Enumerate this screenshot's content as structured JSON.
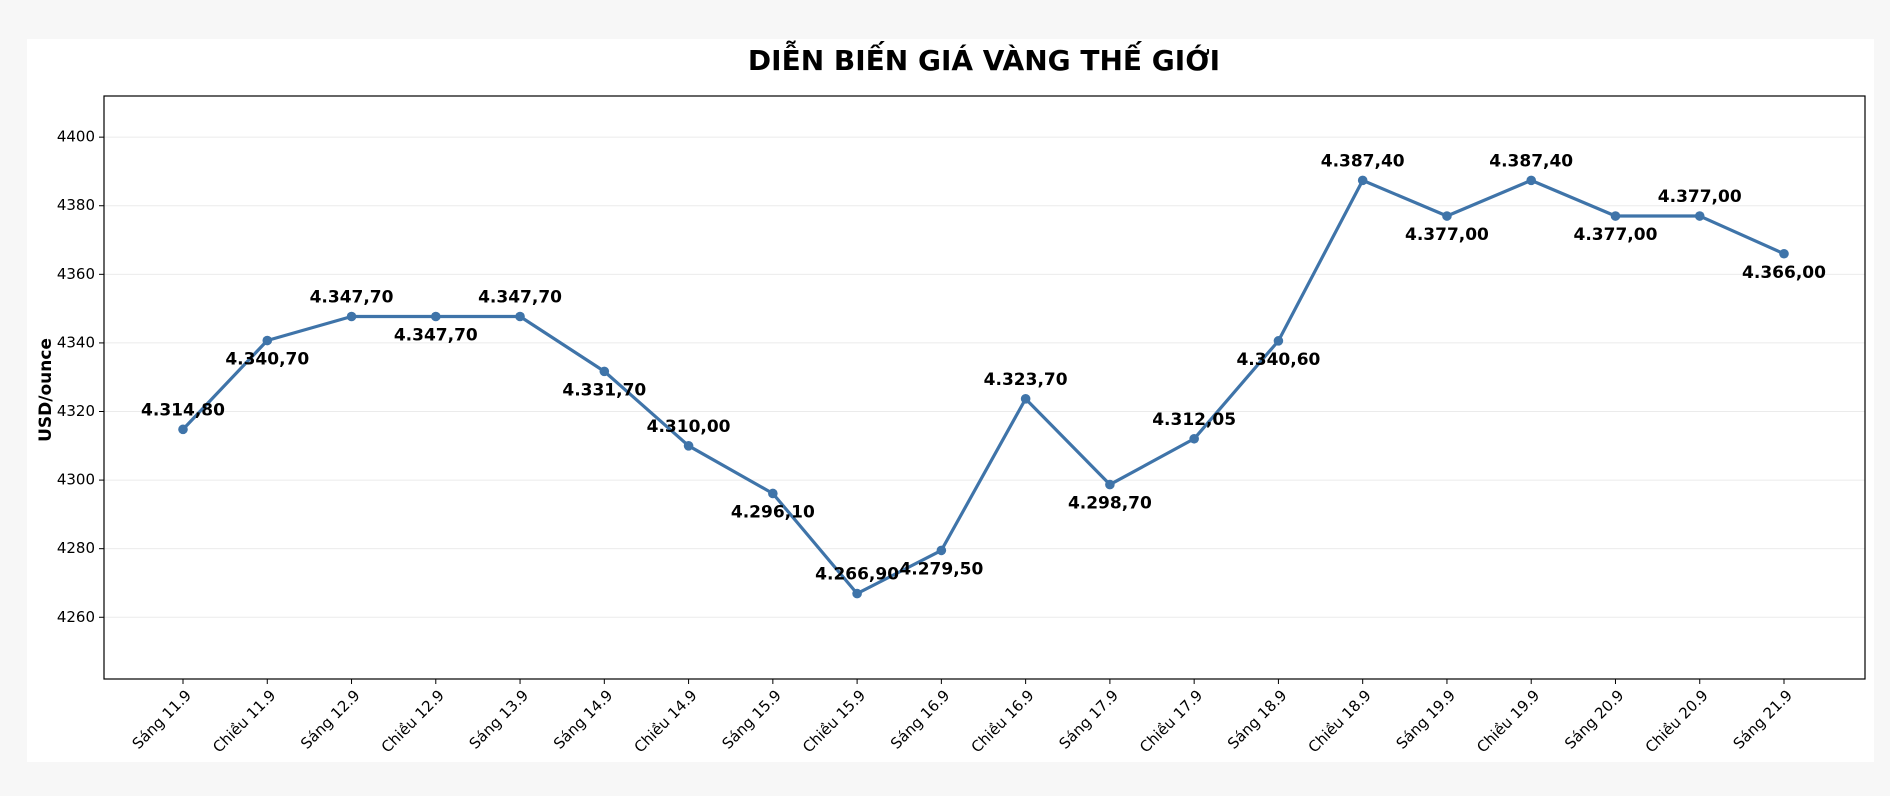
{
  "chart_data": {
    "type": "line",
    "title": "DIỄN BIẾN GIÁ VÀNG THẾ GIỚI",
    "y_label": "USD/ounce",
    "categories": [
      "Sáng 11.9",
      "Chiều 11.9",
      "Sáng 12.9",
      "Chiều 12.9",
      "Sáng 13.9",
      "Sáng 14.9",
      "Chiều 14.9",
      "Sáng 15.9",
      "Chiều 15.9",
      "Sáng 16.9",
      "Chiều 16.9",
      "Sáng 17.9",
      "Chiều 17.9",
      "Sáng 18.9",
      "Chiều 18.9",
      "Sáng 19.9",
      "Chiều 19.9",
      "Sáng 20.9",
      "Chiều 20.9",
      "Sáng 21.9"
    ],
    "values": [
      4314.8,
      4340.7,
      4347.7,
      4347.7,
      4347.7,
      4331.7,
      4310,
      4296.1,
      4266.9,
      4279.5,
      4323.7,
      4298.7,
      4312.05,
      4340.6,
      4387.4,
      4377,
      4387.4,
      4377,
      4377,
      4366
    ],
    "value_labels": [
      "4.314,80",
      "4.340,70",
      "4.347,70",
      "4.347,70",
      "4.347,70",
      "4.331,70",
      "4.310,00",
      "4.296,10",
      "4.266,90",
      "4.279,50",
      "4.323,70",
      "4.298,70",
      "4.312,05",
      "4.340,60",
      "4.387,40",
      "4.377,00",
      "4.387,40",
      "4.377,00",
      "4.377,00",
      "4.366,00"
    ],
    "color": "#3f74a9",
    "ylim": [
      4242,
      4412
    ],
    "yticks": [
      4260,
      4280,
      4300,
      4320,
      4340,
      4360,
      4380,
      4400
    ],
    "grid": true
  }
}
